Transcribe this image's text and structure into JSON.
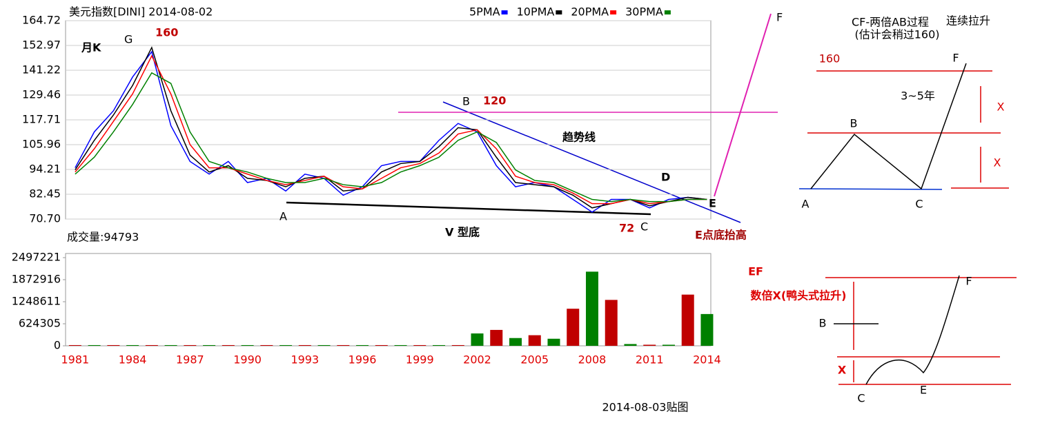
{
  "chart_data": [
    {
      "type": "line",
      "title": "美元指数[DINI] 2014-08-02",
      "x": [
        1981,
        1982,
        1983,
        1984,
        1985,
        1986,
        1987,
        1988,
        1989,
        1990,
        1991,
        1992,
        1993,
        1994,
        1995,
        1996,
        1997,
        1998,
        1999,
        2000,
        2001,
        2002,
        2003,
        2004,
        2005,
        2006,
        2007,
        2008,
        2009,
        2010,
        2011,
        2012,
        2013,
        2014
      ],
      "series": [
        {
          "name": "5PMA",
          "color": "#0000ff",
          "values": [
            95,
            112,
            122,
            138,
            150,
            115,
            98,
            92,
            98,
            88,
            90,
            84,
            92,
            90,
            82,
            86,
            96,
            98,
            98,
            108,
            116,
            112,
            96,
            86,
            88,
            86,
            80,
            74,
            80,
            80,
            76,
            80,
            81,
            80
          ]
        },
        {
          "name": "10PMA",
          "color": "#000000",
          "values": [
            94,
            108,
            120,
            134,
            152,
            122,
            101,
            93,
            96,
            90,
            89,
            86,
            90,
            91,
            84,
            85,
            93,
            97,
            98,
            105,
            114,
            113,
            100,
            88,
            87,
            86,
            82,
            76,
            78,
            80,
            77,
            79,
            81,
            80
          ]
        },
        {
          "name": "20PMA",
          "color": "#ff0000",
          "values": [
            93,
            104,
            117,
            130,
            148,
            130,
            106,
            95,
            95,
            92,
            89,
            87,
            89,
            91,
            86,
            85,
            90,
            95,
            97,
            102,
            111,
            113,
            104,
            91,
            88,
            87,
            83,
            78,
            78,
            80,
            78,
            79,
            80,
            80
          ]
        },
        {
          "name": "30PMA",
          "color": "#008000",
          "values": [
            92,
            100,
            112,
            125,
            140,
            135,
            112,
            98,
            95,
            93,
            90,
            88,
            88,
            90,
            87,
            86,
            88,
            93,
            96,
            100,
            108,
            112,
            107,
            94,
            89,
            88,
            84,
            80,
            79,
            80,
            79,
            79,
            80,
            80
          ]
        }
      ],
      "xlim": [
        1980.5,
        2014.2
      ],
      "ylim": [
        70.7,
        164.72
      ],
      "yticks": [
        {
          "value": 70.7,
          "label": "70.70"
        },
        82.45,
        94.21,
        105.96,
        117.71,
        129.46,
        141.22,
        152.97,
        164.72
      ],
      "grid": true,
      "annotations": [
        "月K",
        "G",
        "160",
        "B",
        "120",
        "趋势线",
        "D",
        "E",
        "A",
        "V 型底",
        "72",
        "C",
        "E点底抬高",
        "F"
      ]
    },
    {
      "type": "bar",
      "title": "成交量:94793",
      "x": [
        1981,
        1982,
        1983,
        1984,
        1985,
        1986,
        1987,
        1988,
        1989,
        1990,
        1991,
        1992,
        1993,
        1994,
        1995,
        1996,
        1997,
        1998,
        1999,
        2000,
        2001,
        2002,
        2003,
        2004,
        2005,
        2006,
        2007,
        2008,
        2009,
        2010,
        2011,
        2012,
        2013,
        2014
      ],
      "values": [
        20000,
        20000,
        20000,
        20000,
        20000,
        20000,
        20000,
        20000,
        20000,
        20000,
        20000,
        20000,
        20000,
        20000,
        20000,
        20000,
        20000,
        20000,
        20000,
        20000,
        20000,
        350000,
        450000,
        220000,
        300000,
        200000,
        1050000,
        2100000,
        1300000,
        50000,
        30000,
        30000,
        1450000,
        900000
      ],
      "color": "#c00000",
      "xlim": [
        1980.5,
        2014.2
      ],
      "ylim": [
        0,
        2497221
      ],
      "yticks": [
        0,
        624305,
        1248611,
        1872916,
        2497221
      ],
      "xticks": [
        1981,
        1984,
        1987,
        1990,
        1993,
        1996,
        1999,
        2002,
        2005,
        2008,
        2011,
        2014
      ]
    }
  ],
  "diagram1": {
    "labels": [
      "CF-两倍AB过程",
      "(估计会稍过160)",
      "连续拉升",
      "160",
      "F",
      "3~5年",
      "X",
      "B",
      "X",
      "A",
      "C"
    ]
  },
  "diagram2": {
    "labels": [
      "EF",
      "数倍X(鸭头式拉升)",
      "B",
      "F",
      "X",
      "C",
      "E"
    ]
  },
  "footer": "2014-08-03贴图"
}
